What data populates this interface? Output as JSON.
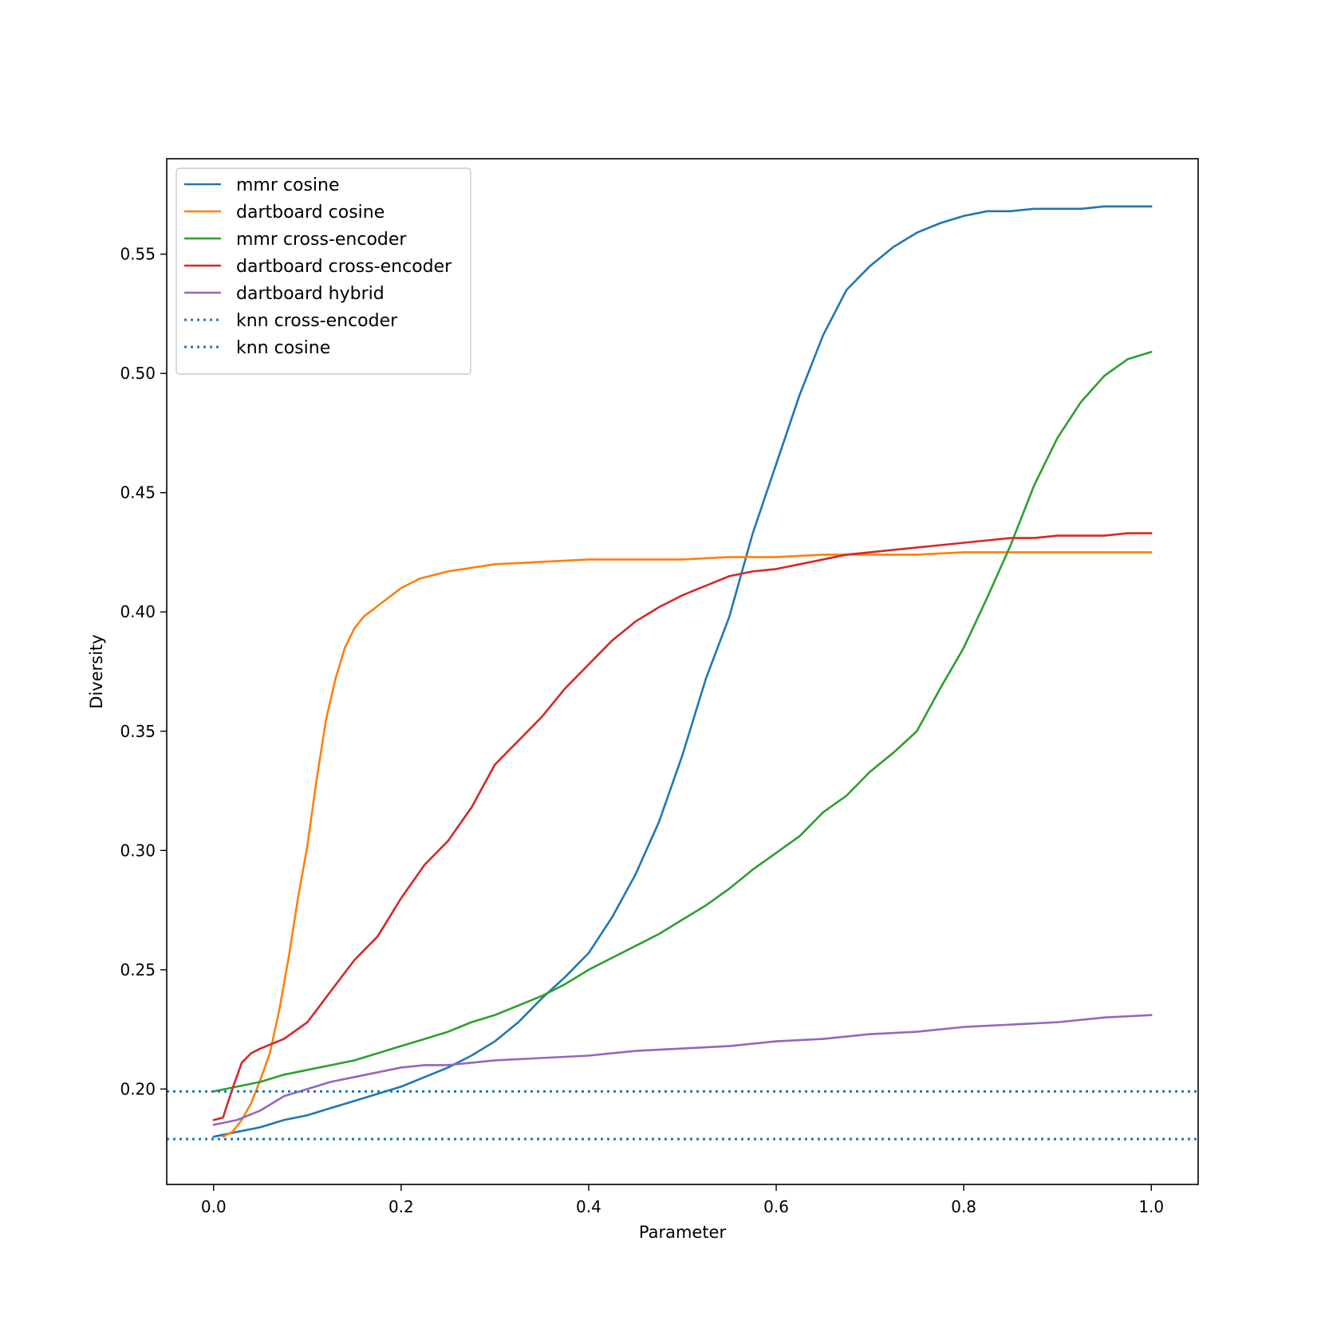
{
  "chart_data": {
    "type": "line",
    "title": "",
    "xlabel": "Parameter",
    "ylabel": "Diversity",
    "xlim": [
      -0.05,
      1.05
    ],
    "ylim": [
      0.16,
      0.59
    ],
    "xticks": [
      0.0,
      0.2,
      0.4,
      0.6,
      0.8,
      1.0
    ],
    "xtick_labels": [
      "0.0",
      "0.2",
      "0.4",
      "0.6",
      "0.8",
      "1.0"
    ],
    "yticks": [
      0.2,
      0.25,
      0.3,
      0.35,
      0.4,
      0.45,
      0.5,
      0.55
    ],
    "ytick_labels": [
      "0.20",
      "0.25",
      "0.30",
      "0.35",
      "0.40",
      "0.45",
      "0.50",
      "0.55"
    ],
    "grid": false,
    "legend_position": "top-left",
    "series": [
      {
        "name": "mmr cosine",
        "color": "#1f77b4",
        "style": "solid",
        "x": [
          0.0,
          0.025,
          0.05,
          0.075,
          0.1,
          0.125,
          0.15,
          0.175,
          0.2,
          0.225,
          0.25,
          0.275,
          0.3,
          0.325,
          0.35,
          0.375,
          0.4,
          0.425,
          0.45,
          0.475,
          0.5,
          0.525,
          0.55,
          0.575,
          0.6,
          0.625,
          0.65,
          0.675,
          0.7,
          0.725,
          0.75,
          0.775,
          0.8,
          0.825,
          0.85,
          0.875,
          0.9,
          0.925,
          0.95,
          0.975,
          1.0
        ],
        "y": [
          0.18,
          0.182,
          0.184,
          0.187,
          0.189,
          0.192,
          0.195,
          0.198,
          0.201,
          0.205,
          0.209,
          0.214,
          0.22,
          0.228,
          0.238,
          0.247,
          0.257,
          0.272,
          0.29,
          0.312,
          0.34,
          0.372,
          0.398,
          0.433,
          0.462,
          0.491,
          0.516,
          0.535,
          0.545,
          0.553,
          0.559,
          0.563,
          0.566,
          0.568,
          0.568,
          0.569,
          0.569,
          0.569,
          0.57,
          0.57,
          0.57
        ]
      },
      {
        "name": "dartboard cosine",
        "color": "#ff7f0e",
        "style": "solid",
        "x": [
          0.01,
          0.02,
          0.03,
          0.04,
          0.05,
          0.06,
          0.07,
          0.08,
          0.09,
          0.1,
          0.11,
          0.12,
          0.13,
          0.14,
          0.15,
          0.16,
          0.18,
          0.2,
          0.22,
          0.25,
          0.3,
          0.35,
          0.4,
          0.45,
          0.5,
          0.55,
          0.6,
          0.65,
          0.7,
          0.75,
          0.8,
          0.85,
          0.9,
          0.95,
          1.0
        ],
        "y": [
          0.18,
          0.182,
          0.187,
          0.194,
          0.204,
          0.215,
          0.233,
          0.255,
          0.28,
          0.302,
          0.33,
          0.355,
          0.372,
          0.385,
          0.393,
          0.398,
          0.404,
          0.41,
          0.414,
          0.417,
          0.42,
          0.421,
          0.422,
          0.422,
          0.422,
          0.423,
          0.423,
          0.424,
          0.424,
          0.424,
          0.425,
          0.425,
          0.425,
          0.425,
          0.425
        ]
      },
      {
        "name": "mmr cross-encoder",
        "color": "#2ca02c",
        "style": "solid",
        "x": [
          0.0,
          0.025,
          0.05,
          0.075,
          0.1,
          0.125,
          0.15,
          0.175,
          0.2,
          0.225,
          0.25,
          0.275,
          0.3,
          0.325,
          0.35,
          0.375,
          0.4,
          0.425,
          0.45,
          0.475,
          0.5,
          0.525,
          0.55,
          0.575,
          0.6,
          0.625,
          0.65,
          0.675,
          0.7,
          0.725,
          0.75,
          0.775,
          0.8,
          0.825,
          0.85,
          0.875,
          0.9,
          0.925,
          0.95,
          0.975,
          1.0
        ],
        "y": [
          0.199,
          0.201,
          0.203,
          0.206,
          0.208,
          0.21,
          0.212,
          0.215,
          0.218,
          0.221,
          0.224,
          0.228,
          0.231,
          0.235,
          0.239,
          0.244,
          0.25,
          0.255,
          0.26,
          0.265,
          0.271,
          0.277,
          0.284,
          0.292,
          0.299,
          0.306,
          0.316,
          0.323,
          0.333,
          0.341,
          0.35,
          0.368,
          0.385,
          0.406,
          0.428,
          0.453,
          0.473,
          0.488,
          0.499,
          0.506,
          0.509
        ]
      },
      {
        "name": "dartboard cross-encoder",
        "color": "#d62728",
        "style": "solid",
        "x": [
          0.0,
          0.01,
          0.02,
          0.03,
          0.04,
          0.05,
          0.075,
          0.1,
          0.125,
          0.15,
          0.175,
          0.2,
          0.225,
          0.25,
          0.275,
          0.3,
          0.325,
          0.35,
          0.375,
          0.4,
          0.425,
          0.45,
          0.475,
          0.5,
          0.525,
          0.55,
          0.575,
          0.6,
          0.625,
          0.65,
          0.675,
          0.7,
          0.725,
          0.75,
          0.775,
          0.8,
          0.825,
          0.85,
          0.875,
          0.9,
          0.925,
          0.95,
          0.975,
          1.0
        ],
        "y": [
          0.187,
          0.188,
          0.2,
          0.211,
          0.215,
          0.217,
          0.221,
          0.228,
          0.241,
          0.254,
          0.264,
          0.28,
          0.294,
          0.304,
          0.318,
          0.336,
          0.346,
          0.356,
          0.368,
          0.378,
          0.388,
          0.396,
          0.402,
          0.407,
          0.411,
          0.415,
          0.417,
          0.418,
          0.42,
          0.422,
          0.424,
          0.425,
          0.426,
          0.427,
          0.428,
          0.429,
          0.43,
          0.431,
          0.431,
          0.432,
          0.432,
          0.432,
          0.433,
          0.433
        ]
      },
      {
        "name": "dartboard hybrid",
        "color": "#9467bd",
        "style": "solid",
        "x": [
          0.0,
          0.025,
          0.05,
          0.075,
          0.1,
          0.125,
          0.15,
          0.175,
          0.2,
          0.225,
          0.25,
          0.275,
          0.3,
          0.35,
          0.4,
          0.45,
          0.5,
          0.55,
          0.6,
          0.65,
          0.7,
          0.75,
          0.8,
          0.85,
          0.9,
          0.95,
          1.0
        ],
        "y": [
          0.185,
          0.187,
          0.191,
          0.197,
          0.2,
          0.203,
          0.205,
          0.207,
          0.209,
          0.21,
          0.21,
          0.211,
          0.212,
          0.213,
          0.214,
          0.216,
          0.217,
          0.218,
          0.22,
          0.221,
          0.223,
          0.224,
          0.226,
          0.227,
          0.228,
          0.23,
          0.231
        ]
      },
      {
        "name": "knn cross-encoder",
        "color": "#1f77b4",
        "style": "dotted",
        "x": [
          -0.05,
          1.05
        ],
        "y": [
          0.199,
          0.199
        ]
      },
      {
        "name": "knn cosine",
        "color": "#1f77b4",
        "style": "dotted",
        "x": [
          -0.05,
          1.05
        ],
        "y": [
          0.179,
          0.179
        ]
      }
    ]
  }
}
